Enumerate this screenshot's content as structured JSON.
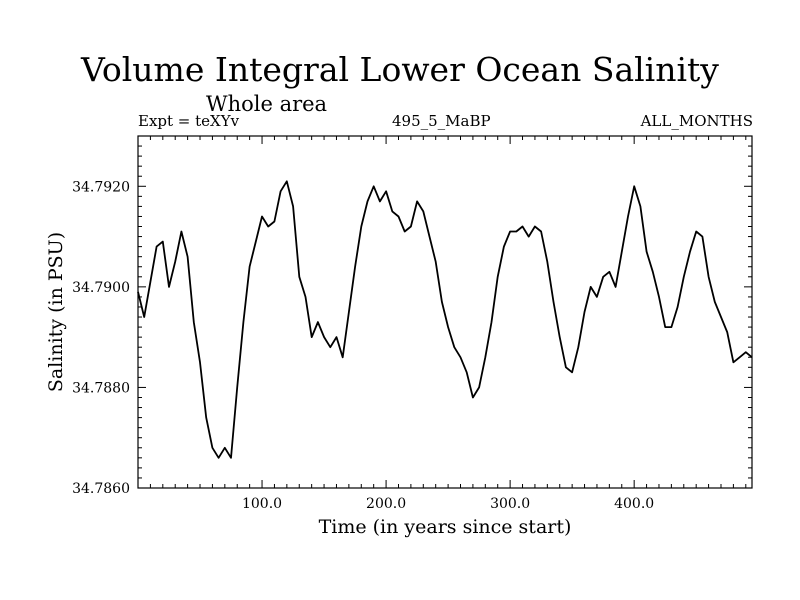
{
  "chart_data": {
    "type": "line",
    "title": "Volume Integral Lower Ocean Salinity",
    "subtitle": "Whole area",
    "left_label": "Expt = teXYv",
    "center_label": "495_5_MaBP",
    "right_label": "ALL_MONTHS",
    "xlabel": "Time (in years since start)",
    "ylabel": "Salinity (in PSU)",
    "xlim": [
      0,
      495
    ],
    "ylim": [
      34.786,
      34.793
    ],
    "xticks": [
      {
        "value": 100,
        "label": "100.0"
      },
      {
        "value": 200,
        "label": "200.0"
      },
      {
        "value": 300,
        "label": "300.0"
      },
      {
        "value": 400,
        "label": "400.0"
      }
    ],
    "yticks": [
      {
        "value": 34.786,
        "label": "34.7860"
      },
      {
        "value": 34.788,
        "label": "34.7880"
      },
      {
        "value": 34.79,
        "label": "34.7900"
      },
      {
        "value": 34.792,
        "label": "34.7920"
      }
    ],
    "grid": false,
    "series": [
      {
        "color": "#000000",
        "x": [
          0,
          5,
          10,
          15,
          20,
          25,
          30,
          35,
          40,
          45,
          50,
          55,
          60,
          65,
          70,
          75,
          80,
          85,
          90,
          95,
          100,
          105,
          110,
          115,
          120,
          125,
          130,
          135,
          140,
          145,
          150,
          155,
          160,
          165,
          170,
          175,
          180,
          185,
          190,
          195,
          200,
          205,
          210,
          215,
          220,
          225,
          230,
          235,
          240,
          245,
          250,
          255,
          260,
          265,
          270,
          275,
          280,
          285,
          290,
          295,
          300,
          305,
          310,
          315,
          320,
          325,
          330,
          335,
          340,
          345,
          350,
          355,
          360,
          365,
          370,
          375,
          380,
          385,
          390,
          395,
          400,
          405,
          410,
          415,
          420,
          425,
          430,
          435,
          440,
          445,
          450,
          455,
          460,
          465,
          470,
          475,
          480,
          485,
          490,
          495
        ],
        "y": [
          34.7899,
          34.7894,
          34.7901,
          34.7908,
          34.7909,
          34.79,
          34.7905,
          34.7911,
          34.7906,
          34.7893,
          34.7885,
          34.7874,
          34.7868,
          34.7866,
          34.7868,
          34.7866,
          34.788,
          34.7893,
          34.7904,
          34.7909,
          34.7914,
          34.7912,
          34.7913,
          34.7919,
          34.7921,
          34.7916,
          34.7902,
          34.7898,
          34.789,
          34.7893,
          34.789,
          34.7888,
          34.789,
          34.7886,
          34.7895,
          34.7904,
          34.7912,
          34.7917,
          34.792,
          34.7917,
          34.7919,
          34.7915,
          34.7914,
          34.7911,
          34.7912,
          34.7917,
          34.7915,
          34.791,
          34.7905,
          34.7897,
          34.7892,
          34.7888,
          34.7886,
          34.7883,
          34.7878,
          34.788,
          34.7886,
          34.7893,
          34.7902,
          34.7908,
          34.7911,
          34.7911,
          34.7912,
          34.791,
          34.7912,
          34.7911,
          34.7905,
          34.7897,
          34.789,
          34.7884,
          34.7883,
          34.7888,
          34.7895,
          34.79,
          34.7898,
          34.7902,
          34.7903,
          34.79,
          34.7907,
          34.7914,
          34.792,
          34.7916,
          34.7907,
          34.7903,
          34.7898,
          34.7892,
          34.7892,
          34.7896,
          34.7902,
          34.7907,
          34.7911,
          34.791,
          34.7902,
          34.7897,
          34.7894,
          34.7891,
          34.7885,
          34.7886,
          34.7887,
          34.7886
        ]
      }
    ]
  }
}
